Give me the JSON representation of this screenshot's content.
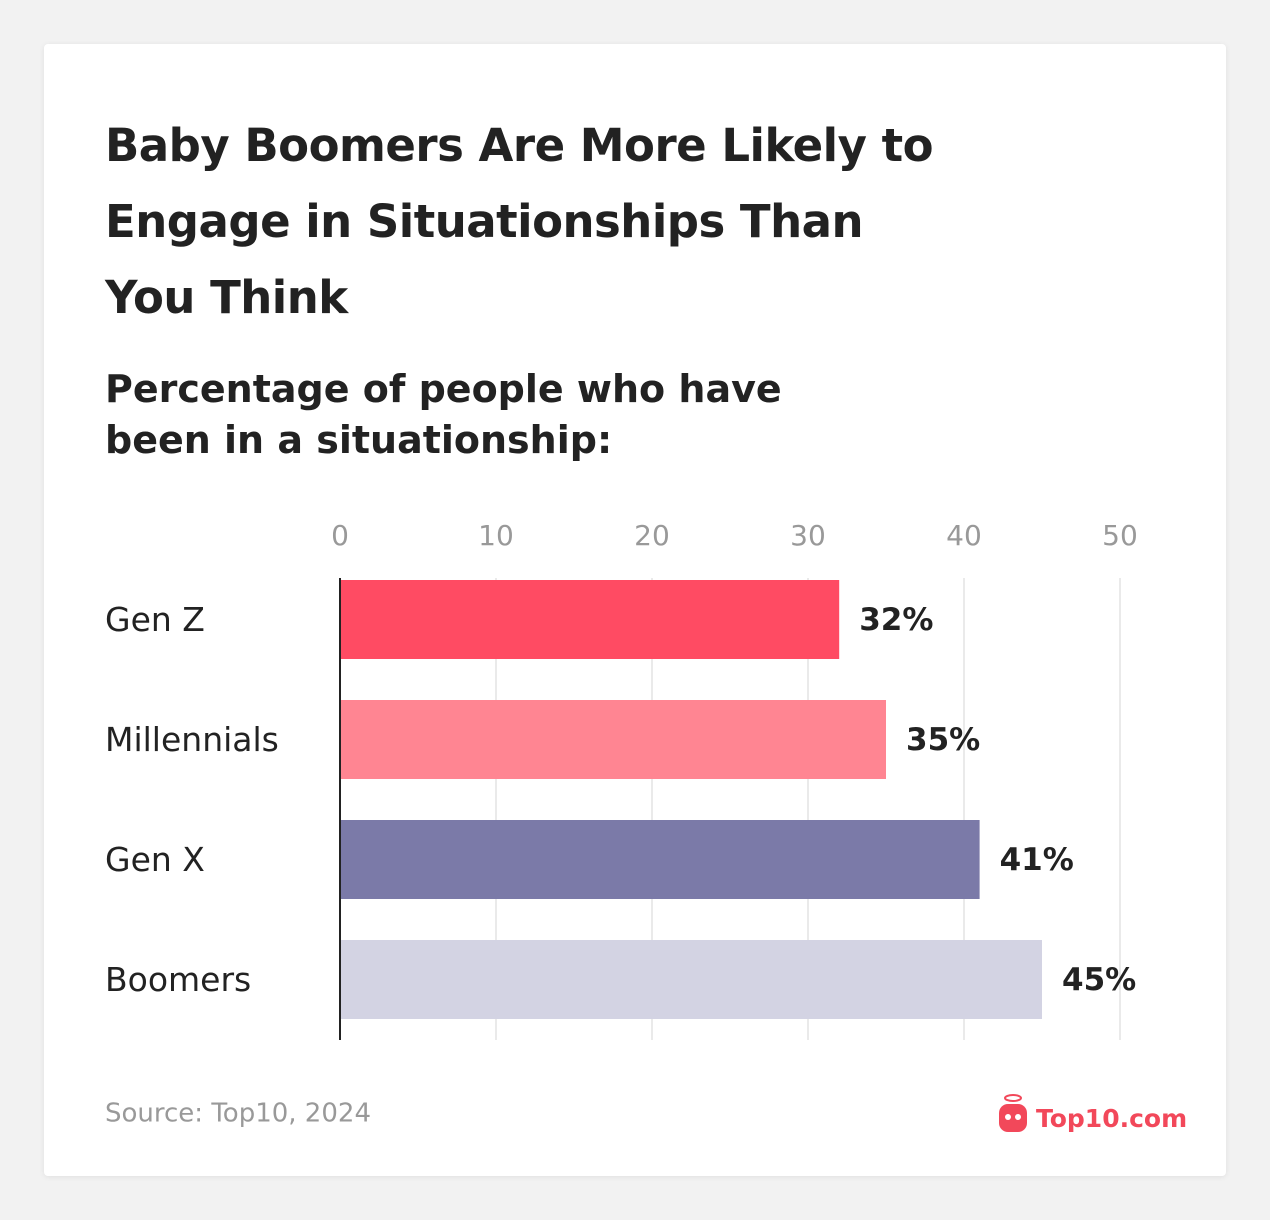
{
  "chart_data": {
    "type": "bar",
    "orientation": "horizontal",
    "title": "Baby Boomers Are More Likely to Engage in Situationships Than You Think",
    "subtitle": "Percentage of people who have been in a situationship:",
    "categories": [
      "Gen Z",
      "Millennials",
      "Gen X",
      "Boomers"
    ],
    "values": [
      32,
      35,
      41,
      45
    ],
    "value_labels": [
      "32%",
      "35%",
      "41%",
      "45%"
    ],
    "colors": [
      "#ff4b63",
      "#ff8592",
      "#7b7aa8",
      "#d3d3e3"
    ],
    "xlim": [
      0,
      50
    ],
    "xticks": [
      0,
      10,
      20,
      30,
      40,
      50
    ],
    "grid": true,
    "source": "Source: Top10, 2024",
    "logo": "Top10.com"
  }
}
